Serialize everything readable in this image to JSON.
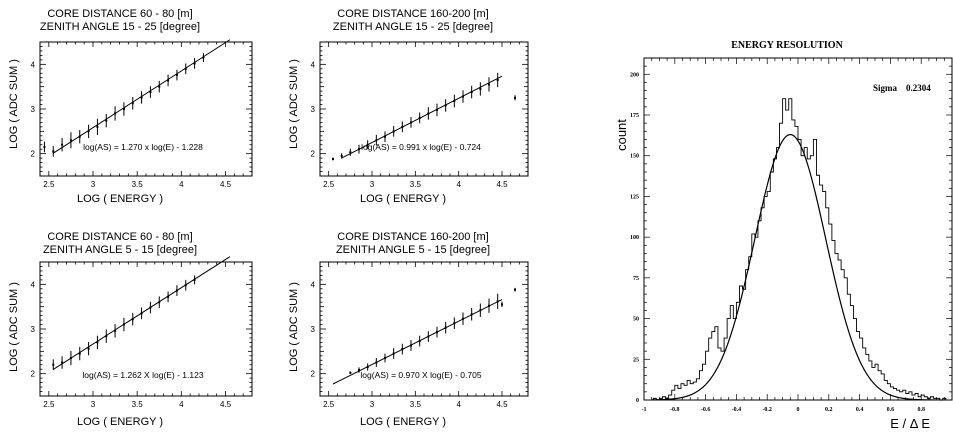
{
  "chart_data": [
    {
      "type": "scatter",
      "title_line1": "CORE DISTANCE 60 - 80 [m]",
      "title_line2": "ZENITH ANGLE 15 - 25  [degree]",
      "xlabel": "LOG ( ENERGY )",
      "ylabel": "LOG ( ADC SUM )",
      "xlim": [
        2.4,
        4.8
      ],
      "ylim": [
        1.5,
        4.5
      ],
      "xticks": [
        "2.5",
        "3",
        "3.5",
        "4",
        "4.5"
      ],
      "yticks": [
        "2",
        "3",
        "4"
      ],
      "annotation": "log(AS) = 1.270 x log(E) - 1.228",
      "fit": {
        "slope": 1.27,
        "intercept": -1.228,
        "x_range": [
          2.55,
          4.55
        ]
      },
      "series": [
        {
          "x": [
            2.45,
            2.55,
            2.65,
            2.75,
            2.85,
            2.95,
            3.05,
            3.15,
            3.25,
            3.35,
            3.45,
            3.55,
            3.65,
            3.75,
            3.85,
            3.95,
            4.05,
            4.15,
            4.25
          ],
          "y": [
            2.15,
            2.05,
            2.2,
            2.3,
            2.38,
            2.5,
            2.6,
            2.74,
            2.9,
            3.0,
            3.13,
            3.26,
            3.38,
            3.5,
            3.64,
            3.76,
            3.9,
            4.02,
            4.15
          ],
          "err": [
            0.12,
            0.12,
            0.15,
            0.18,
            0.15,
            0.15,
            0.18,
            0.15,
            0.16,
            0.15,
            0.14,
            0.14,
            0.13,
            0.13,
            0.13,
            0.12,
            0.12,
            0.12,
            0.1
          ]
        }
      ]
    },
    {
      "type": "scatter",
      "title_line1": "CORE DISTANCE 160-200 [m]",
      "title_line2": "ZENITH ANGLE 15 - 25  [degree]",
      "xlabel": "LOG ( ENERGY )",
      "ylabel": "LOG ( ADC SUM )",
      "xlim": [
        2.4,
        4.8
      ],
      "ylim": [
        1.5,
        4.5
      ],
      "xticks": [
        "2.5",
        "3",
        "3.5",
        "4",
        "4.5"
      ],
      "yticks": [
        "2",
        "3",
        "4"
      ],
      "annotation": "log(AS) = 0.991 x log(E) - 0.724",
      "fit": {
        "slope": 0.991,
        "intercept": -0.724,
        "x_range": [
          2.65,
          4.5
        ]
      },
      "series": [
        {
          "x": [
            2.55,
            2.65,
            2.75,
            2.85,
            2.95,
            3.05,
            3.15,
            3.25,
            3.35,
            3.45,
            3.55,
            3.65,
            3.75,
            3.85,
            3.95,
            4.05,
            4.15,
            4.25,
            4.35,
            4.45,
            4.65
          ],
          "y": [
            1.88,
            1.95,
            2.03,
            2.1,
            2.2,
            2.3,
            2.38,
            2.5,
            2.6,
            2.7,
            2.8,
            2.9,
            2.98,
            3.08,
            3.18,
            3.28,
            3.38,
            3.45,
            3.55,
            3.65,
            3.25
          ],
          "err": [
            0.03,
            0.06,
            0.08,
            0.1,
            0.1,
            0.12,
            0.12,
            0.12,
            0.12,
            0.12,
            0.12,
            0.14,
            0.14,
            0.14,
            0.14,
            0.14,
            0.14,
            0.15,
            0.16,
            0.16,
            0.06
          ]
        }
      ]
    },
    {
      "type": "scatter",
      "title_line1": "CORE DISTANCE 60 - 80 [m]",
      "title_line2": "ZENITH ANGLE  5 - 15  [degree]",
      "xlabel": "LOG ( ENERGY )",
      "ylabel": "LOG ( ADC SUM )",
      "xlim": [
        2.4,
        4.8
      ],
      "ylim": [
        1.5,
        4.5
      ],
      "xticks": [
        "2.5",
        "3",
        "3.5",
        "4",
        "4.5"
      ],
      "yticks": [
        "2",
        "3",
        "4"
      ],
      "annotation": "log(AS) = 1.262 X log(E) - 1.123",
      "fit": {
        "slope": 1.262,
        "intercept": -1.123,
        "x_range": [
          2.55,
          4.55
        ]
      },
      "series": [
        {
          "x": [
            2.55,
            2.65,
            2.75,
            2.85,
            2.95,
            3.05,
            3.15,
            3.25,
            3.35,
            3.45,
            3.55,
            3.65,
            3.75,
            3.85,
            3.95,
            4.05,
            4.15
          ],
          "y": [
            2.2,
            2.25,
            2.35,
            2.45,
            2.56,
            2.7,
            2.84,
            2.96,
            3.1,
            3.22,
            3.35,
            3.48,
            3.6,
            3.72,
            3.86,
            3.98,
            4.1
          ],
          "err": [
            0.12,
            0.14,
            0.16,
            0.15,
            0.15,
            0.15,
            0.15,
            0.15,
            0.15,
            0.14,
            0.13,
            0.13,
            0.13,
            0.12,
            0.12,
            0.12,
            0.1
          ]
        }
      ]
    },
    {
      "type": "scatter",
      "title_line1": "CORE DISTANCE 160-200 [m]",
      "title_line2": "ZENITH ANGLE  5 - 15  [degree]",
      "xlabel": "LOG ( ENERGY )",
      "ylabel": "LOG ( ADC SUM )",
      "xlim": [
        2.4,
        4.8
      ],
      "ylim": [
        1.5,
        4.5
      ],
      "xticks": [
        "2.5",
        "3",
        "3.5",
        "4",
        "4.5"
      ],
      "yticks": [
        "2",
        "3",
        "4"
      ],
      "annotation": "log(AS) = 0.970 X log(E) - 0.705",
      "fit": {
        "slope": 0.97,
        "intercept": -0.705,
        "x_range": [
          2.55,
          4.5
        ]
      },
      "series": [
        {
          "x": [
            2.75,
            2.85,
            2.95,
            3.05,
            3.15,
            3.25,
            3.35,
            3.45,
            3.55,
            3.65,
            3.75,
            3.85,
            3.95,
            4.05,
            4.15,
            4.25,
            4.35,
            4.45,
            4.5,
            4.65
          ],
          "y": [
            2.02,
            2.08,
            2.15,
            2.25,
            2.35,
            2.45,
            2.55,
            2.63,
            2.73,
            2.83,
            2.93,
            3.03,
            3.13,
            3.23,
            3.33,
            3.42,
            3.52,
            3.62,
            3.55,
            3.88
          ],
          "err": [
            0.03,
            0.06,
            0.08,
            0.1,
            0.1,
            0.12,
            0.12,
            0.12,
            0.12,
            0.12,
            0.12,
            0.13,
            0.13,
            0.14,
            0.14,
            0.15,
            0.16,
            0.17,
            0.06,
            0.04
          ]
        }
      ]
    },
    {
      "type": "histogram",
      "title": "ENERGY RESOLUTION",
      "xlabel": "E / Δ E",
      "ylabel": "count",
      "annotation_label": "Sigma",
      "annotation_value": "0.2304",
      "xlim": [
        -1.0,
        1.0
      ],
      "ylim": [
        0,
        210
      ],
      "xticks": [
        "-1",
        "-0.8",
        "-0.6",
        "-0.4",
        "-0.2",
        "0",
        "0.2",
        "0.4",
        "0.6",
        "0.8"
      ],
      "yticks": [
        "0",
        "25",
        "50",
        "75",
        "100",
        "125",
        "150",
        "175",
        "200"
      ],
      "bin_width": 0.02,
      "bins": [
        [
          -1.0,
          0
        ],
        [
          -0.98,
          0
        ],
        [
          -0.96,
          0
        ],
        [
          -0.94,
          1
        ],
        [
          -0.92,
          0
        ],
        [
          -0.9,
          1
        ],
        [
          -0.88,
          2
        ],
        [
          -0.86,
          1
        ],
        [
          -0.84,
          3
        ],
        [
          -0.82,
          6
        ],
        [
          -0.8,
          9
        ],
        [
          -0.78,
          7
        ],
        [
          -0.76,
          10
        ],
        [
          -0.74,
          9
        ],
        [
          -0.72,
          12
        ],
        [
          -0.7,
          10
        ],
        [
          -0.68,
          11
        ],
        [
          -0.66,
          13
        ],
        [
          -0.64,
          18
        ],
        [
          -0.62,
          22
        ],
        [
          -0.6,
          30
        ],
        [
          -0.58,
          38
        ],
        [
          -0.56,
          42
        ],
        [
          -0.54,
          45
        ],
        [
          -0.52,
          32
        ],
        [
          -0.5,
          30
        ],
        [
          -0.48,
          38
        ],
        [
          -0.46,
          50
        ],
        [
          -0.44,
          58
        ],
        [
          -0.42,
          50
        ],
        [
          -0.4,
          60
        ],
        [
          -0.38,
          70
        ],
        [
          -0.36,
          68
        ],
        [
          -0.34,
          80
        ],
        [
          -0.32,
          88
        ],
        [
          -0.3,
          102
        ],
        [
          -0.28,
          100
        ],
        [
          -0.26,
          110
        ],
        [
          -0.24,
          118
        ],
        [
          -0.22,
          125
        ],
        [
          -0.2,
          128
        ],
        [
          -0.18,
          140
        ],
        [
          -0.16,
          148
        ],
        [
          -0.14,
          155
        ],
        [
          -0.12,
          170
        ],
        [
          -0.1,
          185
        ],
        [
          -0.08,
          178
        ],
        [
          -0.06,
          185
        ],
        [
          -0.04,
          172
        ],
        [
          -0.02,
          168
        ],
        [
          0.0,
          160
        ],
        [
          0.02,
          150
        ],
        [
          0.04,
          155
        ],
        [
          0.06,
          148
        ],
        [
          0.08,
          150
        ],
        [
          0.1,
          160
        ],
        [
          0.12,
          138
        ],
        [
          0.14,
          132
        ],
        [
          0.16,
          128
        ],
        [
          0.18,
          118
        ],
        [
          0.2,
          108
        ],
        [
          0.22,
          98
        ],
        [
          0.24,
          90
        ],
        [
          0.26,
          86
        ],
        [
          0.28,
          80
        ],
        [
          0.3,
          75
        ],
        [
          0.32,
          65
        ],
        [
          0.34,
          58
        ],
        [
          0.36,
          50
        ],
        [
          0.38,
          42
        ],
        [
          0.4,
          38
        ],
        [
          0.42,
          32
        ],
        [
          0.44,
          28
        ],
        [
          0.46,
          24
        ],
        [
          0.48,
          20
        ],
        [
          0.5,
          22
        ],
        [
          0.52,
          18
        ],
        [
          0.54,
          16
        ],
        [
          0.56,
          12
        ],
        [
          0.58,
          10
        ],
        [
          0.6,
          8
        ],
        [
          0.62,
          7
        ],
        [
          0.64,
          6
        ],
        [
          0.66,
          5
        ],
        [
          0.68,
          6
        ],
        [
          0.7,
          4
        ],
        [
          0.72,
          5
        ],
        [
          0.74,
          3
        ],
        [
          0.76,
          4
        ],
        [
          0.78,
          2
        ],
        [
          0.8,
          3
        ],
        [
          0.82,
          2
        ],
        [
          0.84,
          1
        ],
        [
          0.86,
          2
        ],
        [
          0.88,
          1
        ],
        [
          0.9,
          1
        ],
        [
          0.92,
          0
        ],
        [
          0.94,
          1
        ],
        [
          0.96,
          0
        ],
        [
          0.98,
          0
        ]
      ],
      "gauss": {
        "amplitude": 163,
        "mean": -0.05,
        "sigma": 0.2304
      }
    }
  ]
}
